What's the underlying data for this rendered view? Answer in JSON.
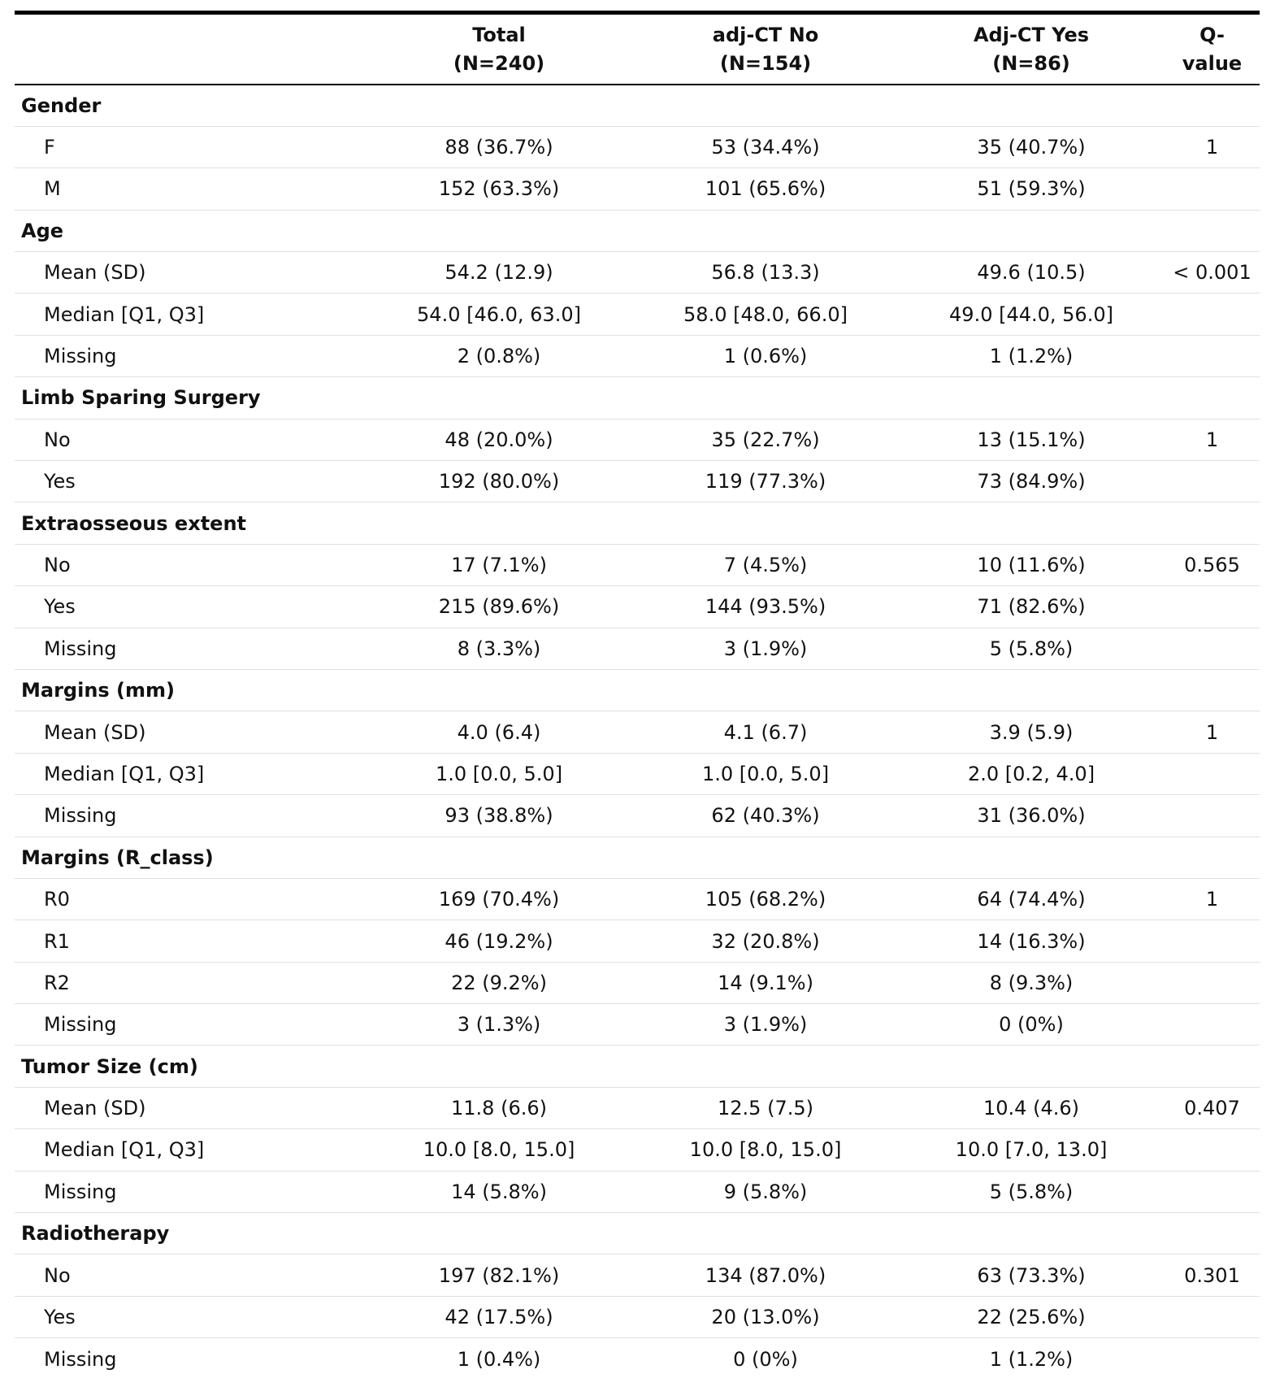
{
  "header": {
    "label": "",
    "total": [
      "Total",
      "(N=240)"
    ],
    "adj_no": [
      "adj-CT No",
      "(N=154)"
    ],
    "adj_yes": [
      "Adj-CT Yes",
      "(N=86)"
    ],
    "q": [
      "Q-",
      "value"
    ]
  },
  "rows": [
    {
      "type": "group",
      "label": "Gender"
    },
    {
      "type": "row",
      "label": "F",
      "total": "88 (36.7%)",
      "no": "53 (34.4%)",
      "yes": "35 (40.7%)",
      "q": "1"
    },
    {
      "type": "row",
      "label": "M",
      "total": "152 (63.3%)",
      "no": "101 (65.6%)",
      "yes": "51 (59.3%)",
      "q": ""
    },
    {
      "type": "group",
      "label": "Age"
    },
    {
      "type": "row",
      "label": "Mean (SD)",
      "total": "54.2 (12.9)",
      "no": "56.8 (13.3)",
      "yes": "49.6 (10.5)",
      "q": "< 0.001"
    },
    {
      "type": "row",
      "label": "Median [Q1, Q3]",
      "total": "54.0 [46.0, 63.0]",
      "no": "58.0 [48.0, 66.0]",
      "yes": "49.0 [44.0, 56.0]",
      "q": ""
    },
    {
      "type": "row",
      "label": "Missing",
      "total": "2 (0.8%)",
      "no": "1 (0.6%)",
      "yes": "1 (1.2%)",
      "q": ""
    },
    {
      "type": "group",
      "label": "Limb Sparing Surgery"
    },
    {
      "type": "row",
      "label": "No",
      "total": "48 (20.0%)",
      "no": "35 (22.7%)",
      "yes": "13 (15.1%)",
      "q": "1"
    },
    {
      "type": "row",
      "label": "Yes",
      "total": "192 (80.0%)",
      "no": "119 (77.3%)",
      "yes": "73 (84.9%)",
      "q": ""
    },
    {
      "type": "group",
      "label": "Extraosseous extent"
    },
    {
      "type": "row",
      "label": "No",
      "total": "17 (7.1%)",
      "no": "7 (4.5%)",
      "yes": "10 (11.6%)",
      "q": "0.565"
    },
    {
      "type": "row",
      "label": "Yes",
      "total": "215 (89.6%)",
      "no": "144 (93.5%)",
      "yes": "71 (82.6%)",
      "q": ""
    },
    {
      "type": "row",
      "label": "Missing",
      "total": "8 (3.3%)",
      "no": "3 (1.9%)",
      "yes": "5 (5.8%)",
      "q": ""
    },
    {
      "type": "group",
      "label": "Margins (mm)"
    },
    {
      "type": "row",
      "label": "Mean (SD)",
      "total": "4.0 (6.4)",
      "no": "4.1 (6.7)",
      "yes": "3.9 (5.9)",
      "q": "1"
    },
    {
      "type": "row",
      "label": "Median [Q1, Q3]",
      "total": "1.0 [0.0, 5.0]",
      "no": "1.0 [0.0, 5.0]",
      "yes": "2.0 [0.2, 4.0]",
      "q": ""
    },
    {
      "type": "row",
      "label": "Missing",
      "total": "93 (38.8%)",
      "no": "62 (40.3%)",
      "yes": "31 (36.0%)",
      "q": ""
    },
    {
      "type": "group",
      "label": "Margins (R_class)"
    },
    {
      "type": "row",
      "label": "R0",
      "total": "169 (70.4%)",
      "no": "105 (68.2%)",
      "yes": "64 (74.4%)",
      "q": "1"
    },
    {
      "type": "row",
      "label": "R1",
      "total": "46 (19.2%)",
      "no": "32 (20.8%)",
      "yes": "14 (16.3%)",
      "q": ""
    },
    {
      "type": "row",
      "label": "R2",
      "total": "22 (9.2%)",
      "no": "14 (9.1%)",
      "yes": "8 (9.3%)",
      "q": ""
    },
    {
      "type": "row",
      "label": "Missing",
      "total": "3 (1.3%)",
      "no": "3 (1.9%)",
      "yes": "0 (0%)",
      "q": ""
    },
    {
      "type": "group",
      "label": "Tumor Size (cm)"
    },
    {
      "type": "row",
      "label": "Mean (SD)",
      "total": "11.8 (6.6)",
      "no": "12.5 (7.5)",
      "yes": "10.4 (4.6)",
      "q": "0.407"
    },
    {
      "type": "row",
      "label": "Median [Q1, Q3]",
      "total": "10.0 [8.0, 15.0]",
      "no": "10.0 [8.0, 15.0]",
      "yes": "10.0 [7.0, 13.0]",
      "q": ""
    },
    {
      "type": "row",
      "label": "Missing",
      "total": "14 (5.8%)",
      "no": "9 (5.8%)",
      "yes": "5 (5.8%)",
      "q": ""
    },
    {
      "type": "group",
      "label": "Radiotherapy"
    },
    {
      "type": "row",
      "label": "No",
      "total": "197 (82.1%)",
      "no": "134 (87.0%)",
      "yes": "63 (73.3%)",
      "q": "0.301"
    },
    {
      "type": "row",
      "label": "Yes",
      "total": "42 (17.5%)",
      "no": "20 (13.0%)",
      "yes": "22 (25.6%)",
      "q": ""
    },
    {
      "type": "row",
      "label": "Missing",
      "total": "1 (0.4%)",
      "no": "0 (0%)",
      "yes": "1 (1.2%)",
      "q": ""
    }
  ]
}
